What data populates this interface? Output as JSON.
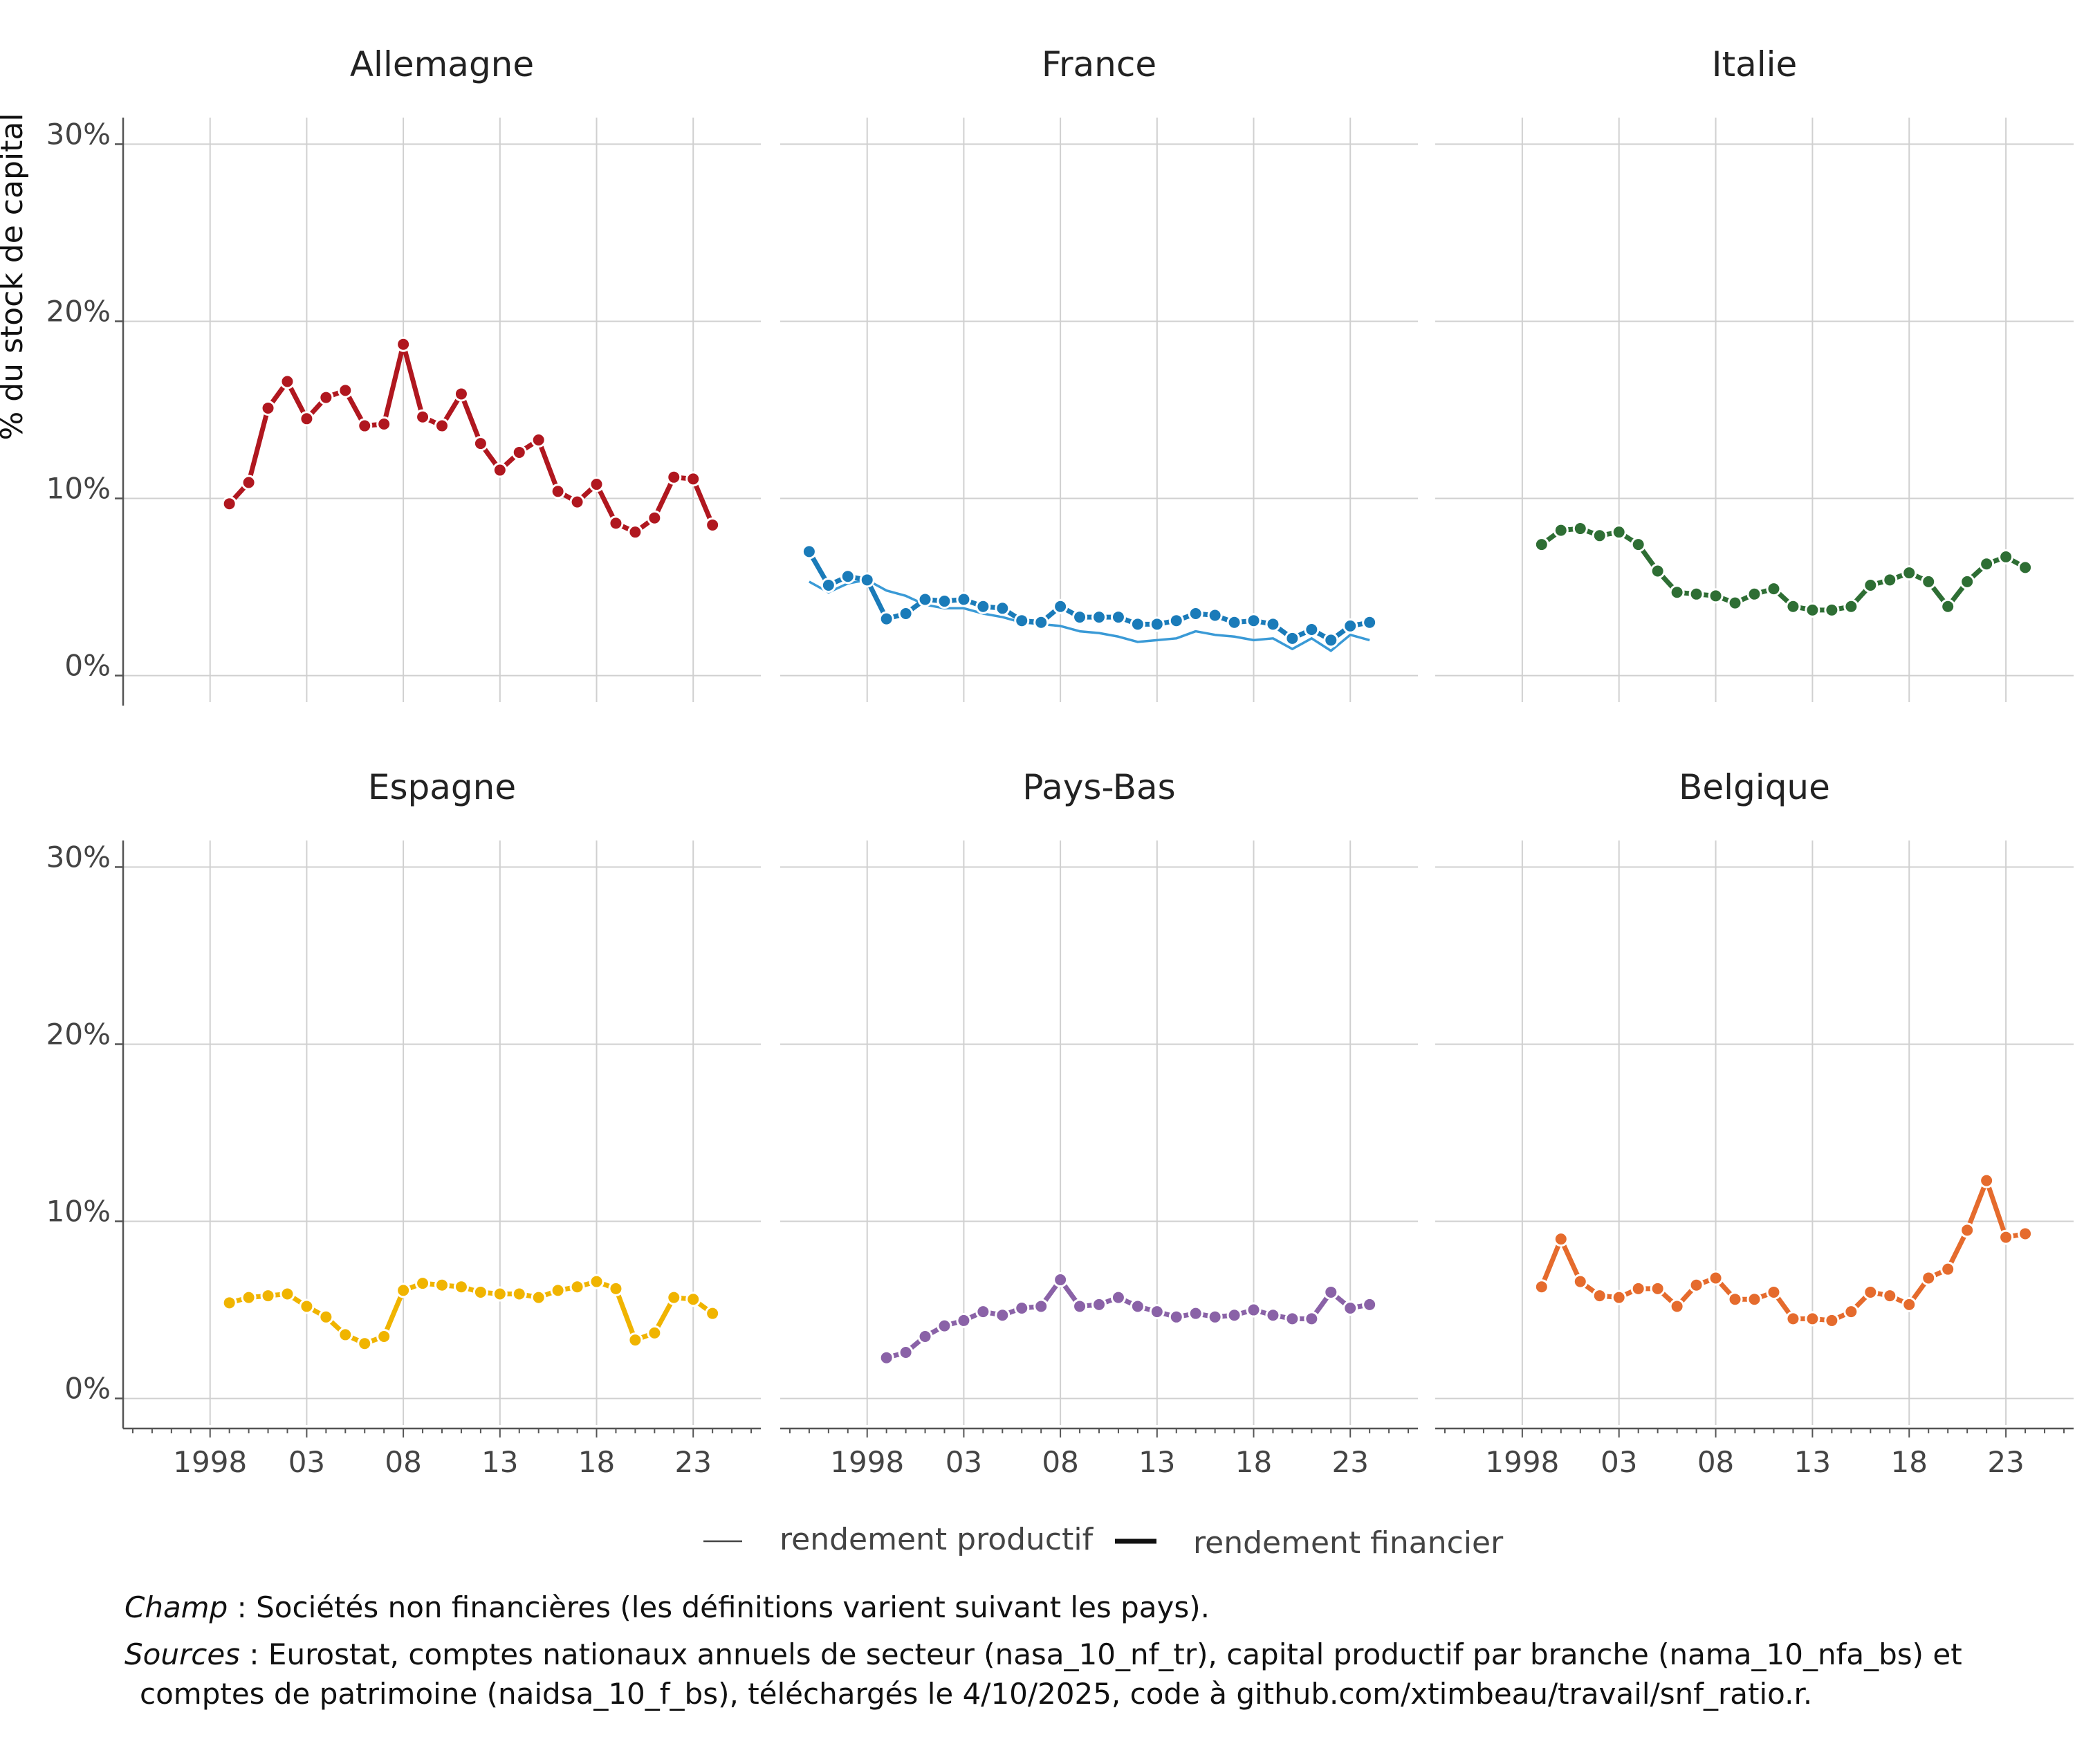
{
  "chart_data": {
    "type": "line",
    "ylabel": "% du stock de capital",
    "ylim": [
      -1.5,
      31.5
    ],
    "yticks": [
      0,
      10,
      20,
      30
    ],
    "ytick_labels": [
      "0%",
      "10%",
      "20%",
      "30%"
    ],
    "xlim": [
      1993.5,
      2026.5
    ],
    "xticks": [
      1998,
      2003,
      2008,
      2013,
      2018,
      2023
    ],
    "xtick_labels": [
      "1998",
      "03",
      "08",
      "13",
      "18",
      "23"
    ],
    "legend": {
      "productif": "rendement productif",
      "financier": "rendement financier"
    },
    "panels": [
      {
        "title": "Allemagne",
        "color": "#b0171f",
        "financier": {
          "x": [
            1999,
            2000,
            2001,
            2002,
            2003,
            2004,
            2005,
            2006,
            2007,
            2008,
            2009,
            2010,
            2011,
            2012,
            2013,
            2014,
            2015,
            2016,
            2017,
            2018,
            2019,
            2020,
            2021,
            2022,
            2023,
            2024
          ],
          "y": [
            9.7,
            10.9,
            15.1,
            16.6,
            14.5,
            15.7,
            16.1,
            14.1,
            14.2,
            18.7,
            14.6,
            14.1,
            15.9,
            13.1,
            11.6,
            12.6,
            13.3,
            10.4,
            9.8,
            10.8,
            8.6,
            8.1,
            8.9,
            11.2,
            11.1,
            8.5
          ]
        },
        "productif": null
      },
      {
        "title": "France",
        "color": "#1a7bb9",
        "financier": {
          "x": [
            1995,
            1996,
            1997,
            1998,
            1999,
            2000,
            2001,
            2002,
            2003,
            2004,
            2005,
            2006,
            2007,
            2008,
            2009,
            2010,
            2011,
            2012,
            2013,
            2014,
            2015,
            2016,
            2017,
            2018,
            2019,
            2020,
            2021,
            2022,
            2023,
            2024
          ],
          "y": [
            7.0,
            5.1,
            5.6,
            5.4,
            3.2,
            3.5,
            4.3,
            4.2,
            4.3,
            3.9,
            3.8,
            3.1,
            3.0,
            3.9,
            3.3,
            3.3,
            3.3,
            2.9,
            2.9,
            3.1,
            3.5,
            3.4,
            3.0,
            3.1,
            2.9,
            2.1,
            2.6,
            2.0,
            2.8,
            3.0
          ]
        },
        "productif": {
          "x": [
            1995,
            1996,
            1997,
            1998,
            1999,
            2000,
            2001,
            2002,
            2003,
            2004,
            2005,
            2006,
            2007,
            2008,
            2009,
            2010,
            2011,
            2012,
            2013,
            2014,
            2015,
            2016,
            2017,
            2018,
            2019,
            2020,
            2021,
            2022,
            2023,
            2024
          ],
          "y": [
            5.3,
            4.7,
            5.2,
            5.4,
            4.8,
            4.5,
            4.0,
            3.8,
            3.8,
            3.5,
            3.3,
            3.0,
            2.9,
            2.8,
            2.5,
            2.4,
            2.2,
            1.9,
            2.0,
            2.1,
            2.5,
            2.3,
            2.2,
            2.0,
            2.1,
            1.5,
            2.1,
            1.4,
            2.3,
            2.0
          ]
        }
      },
      {
        "title": "Italie",
        "color": "#2e6e34",
        "financier": {
          "x": [
            1999,
            2000,
            2001,
            2002,
            2003,
            2004,
            2005,
            2006,
            2007,
            2008,
            2009,
            2010,
            2011,
            2012,
            2013,
            2014,
            2015,
            2016,
            2017,
            2018,
            2019,
            2020,
            2021,
            2022,
            2023,
            2024
          ],
          "y": [
            7.4,
            8.2,
            8.3,
            7.9,
            8.1,
            7.4,
            5.9,
            4.7,
            4.6,
            4.5,
            4.1,
            4.6,
            4.9,
            3.9,
            3.7,
            3.7,
            3.9,
            5.1,
            5.4,
            5.8,
            5.3,
            3.9,
            5.3,
            6.3,
            6.7,
            6.1
          ]
        },
        "productif": null
      },
      {
        "title": "Espagne",
        "color": "#f0b400",
        "financier": {
          "x": [
            1999,
            2000,
            2001,
            2002,
            2003,
            2004,
            2005,
            2006,
            2007,
            2008,
            2009,
            2010,
            2011,
            2012,
            2013,
            2014,
            2015,
            2016,
            2017,
            2018,
            2019,
            2020,
            2021,
            2022,
            2023,
            2024
          ],
          "y": [
            5.4,
            5.7,
            5.8,
            5.9,
            5.2,
            4.6,
            3.6,
            3.1,
            3.5,
            6.1,
            6.5,
            6.4,
            6.3,
            6.0,
            5.9,
            5.9,
            5.7,
            6.1,
            6.3,
            6.6,
            6.2,
            3.3,
            3.7,
            5.7,
            5.6,
            4.8
          ]
        },
        "productif": null
      },
      {
        "title": "Pays-Bas",
        "color": "#8a62a7",
        "financier": {
          "x": [
            1999,
            2000,
            2001,
            2002,
            2003,
            2004,
            2005,
            2006,
            2007,
            2008,
            2009,
            2010,
            2011,
            2012,
            2013,
            2014,
            2015,
            2016,
            2017,
            2018,
            2019,
            2020,
            2021,
            2022,
            2023,
            2024
          ],
          "y": [
            2.3,
            2.6,
            3.5,
            4.1,
            4.4,
            4.9,
            4.7,
            5.1,
            5.2,
            6.7,
            5.2,
            5.3,
            5.7,
            5.2,
            4.9,
            4.6,
            4.8,
            4.6,
            4.7,
            5.0,
            4.7,
            4.5,
            4.5,
            6.0,
            5.1,
            5.3
          ]
        },
        "productif": null
      },
      {
        "title": "Belgique",
        "color": "#e56b2d",
        "financier": {
          "x": [
            1999,
            2000,
            2001,
            2002,
            2003,
            2004,
            2005,
            2006,
            2007,
            2008,
            2009,
            2010,
            2011,
            2012,
            2013,
            2014,
            2015,
            2016,
            2017,
            2018,
            2019,
            2020,
            2021,
            2022,
            2023,
            2024
          ],
          "y": [
            6.3,
            9.0,
            6.6,
            5.8,
            5.7,
            6.2,
            6.2,
            5.2,
            6.4,
            6.8,
            5.6,
            5.6,
            6.0,
            4.5,
            4.5,
            4.4,
            4.9,
            6.0,
            5.8,
            5.3,
            6.8,
            7.3,
            9.5,
            12.3,
            9.1,
            9.3
          ]
        },
        "productif": null
      }
    ]
  },
  "caption": {
    "champ_label": "Champ",
    "champ_text": " : Sociétés non financières (les définitions varient suivant les pays).",
    "sources_label": "Sources",
    "sources_text": " : Eurostat, comptes nationaux annuels de secteur (nasa_10_nf_tr), capital productif par branche (nama_10_nfa_bs) et",
    "sources_text_2": "comptes de patrimoine (naidsa_10_f_bs), téléchargés le 4/10/2025, code à github.com/xtimbeau/travail/snf_ratio.r."
  }
}
